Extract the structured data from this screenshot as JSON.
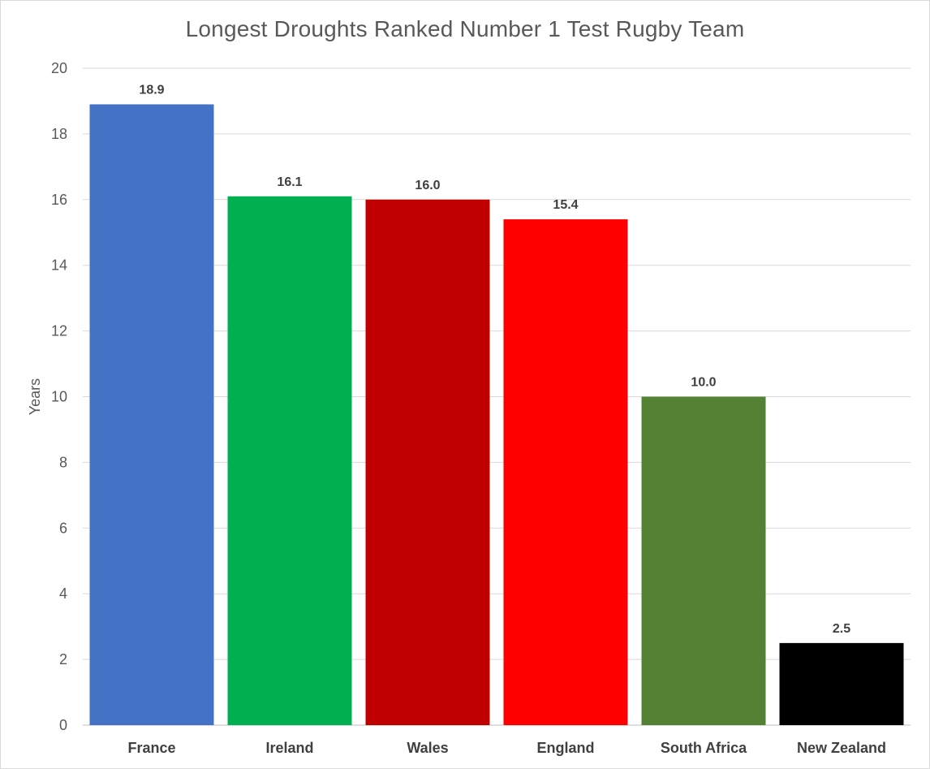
{
  "chart_data": {
    "type": "bar",
    "title": "Longest Droughts Ranked Number 1 Test Rugby Team",
    "xlabel": "",
    "ylabel": "Years",
    "ylim": [
      0,
      20
    ],
    "yticks": [
      0,
      2,
      4,
      6,
      8,
      10,
      12,
      14,
      16,
      18,
      20
    ],
    "grid": true,
    "legend": "none",
    "categories": [
      "France",
      "Ireland",
      "Wales",
      "England",
      "South Africa",
      "New Zealand"
    ],
    "values": [
      18.9,
      16.1,
      16.0,
      15.4,
      10.0,
      2.5
    ],
    "data_labels": [
      "18.9",
      "16.1",
      "16.0",
      "15.4",
      "10.0",
      "2.5"
    ],
    "colors": [
      "#4472c4",
      "#00b050",
      "#c00000",
      "#ff0000",
      "#548235",
      "#000000"
    ]
  }
}
